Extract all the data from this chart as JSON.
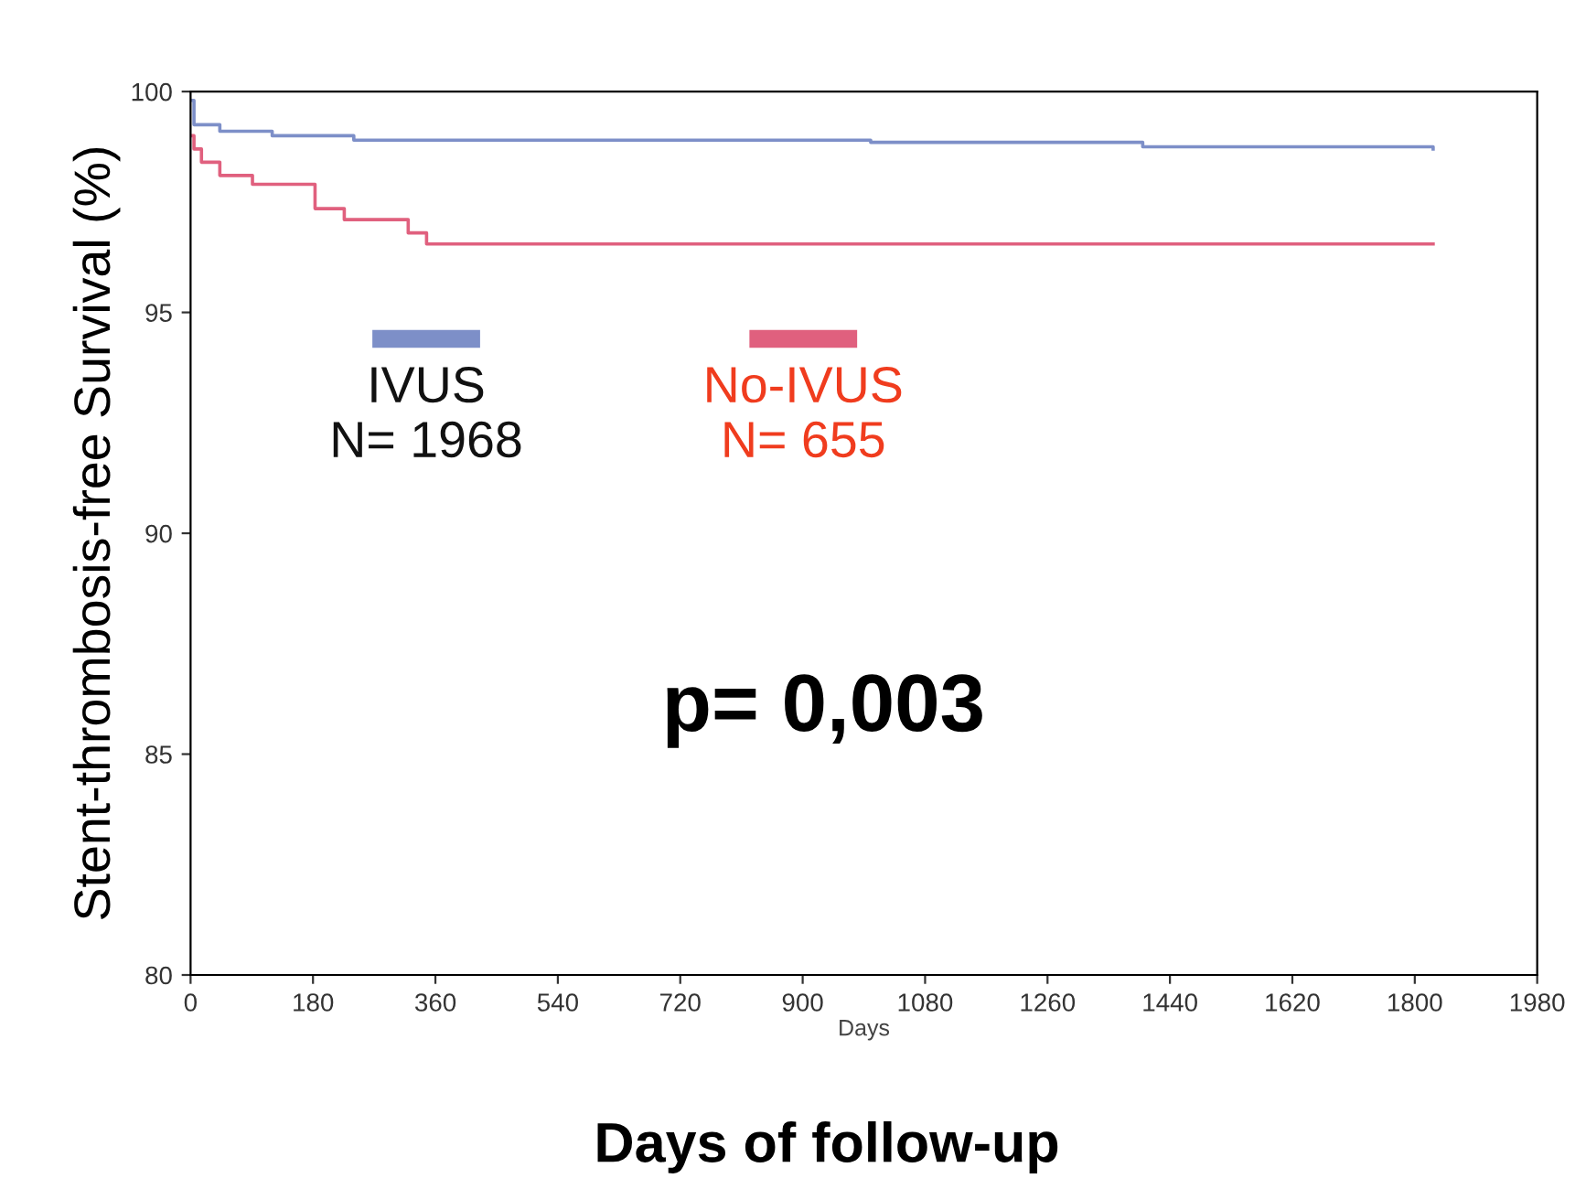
{
  "chart_data": {
    "type": "step",
    "ylabel": "Stent-thrombosis-free Survival (%)",
    "xlabel": "Days",
    "annotations": [
      "p= 0,003",
      "Days of follow-up"
    ],
    "series": [
      {
        "name": "IVUS\nN= 1968",
        "color": "#7d8fc8",
        "x": [
          0,
          5,
          43,
          120,
          240,
          1000,
          1400,
          1827
        ],
        "values": [
          99.8,
          99.25,
          99.1,
          99.0,
          98.9,
          98.85,
          98.75,
          98.7
        ]
      },
      {
        "name": "No-IVUS\nN= 655",
        "color": "#e0607e",
        "x": [
          0,
          5,
          16,
          43,
          91,
          183,
          226,
          320,
          347,
          1827
        ],
        "values": [
          99.0,
          98.7,
          98.4,
          98.1,
          97.9,
          97.35,
          97.1,
          96.8,
          96.55,
          96.55
        ]
      }
    ],
    "xlim": [
      0,
      1980
    ],
    "xticks": [
      0,
      180,
      360,
      540,
      720,
      900,
      1080,
      1260,
      1440,
      1620,
      1800,
      1980
    ],
    "ylim": [
      80,
      100
    ],
    "yticks": [
      80,
      85,
      90,
      95,
      100
    ],
    "legend": "top",
    "grid": false
  }
}
